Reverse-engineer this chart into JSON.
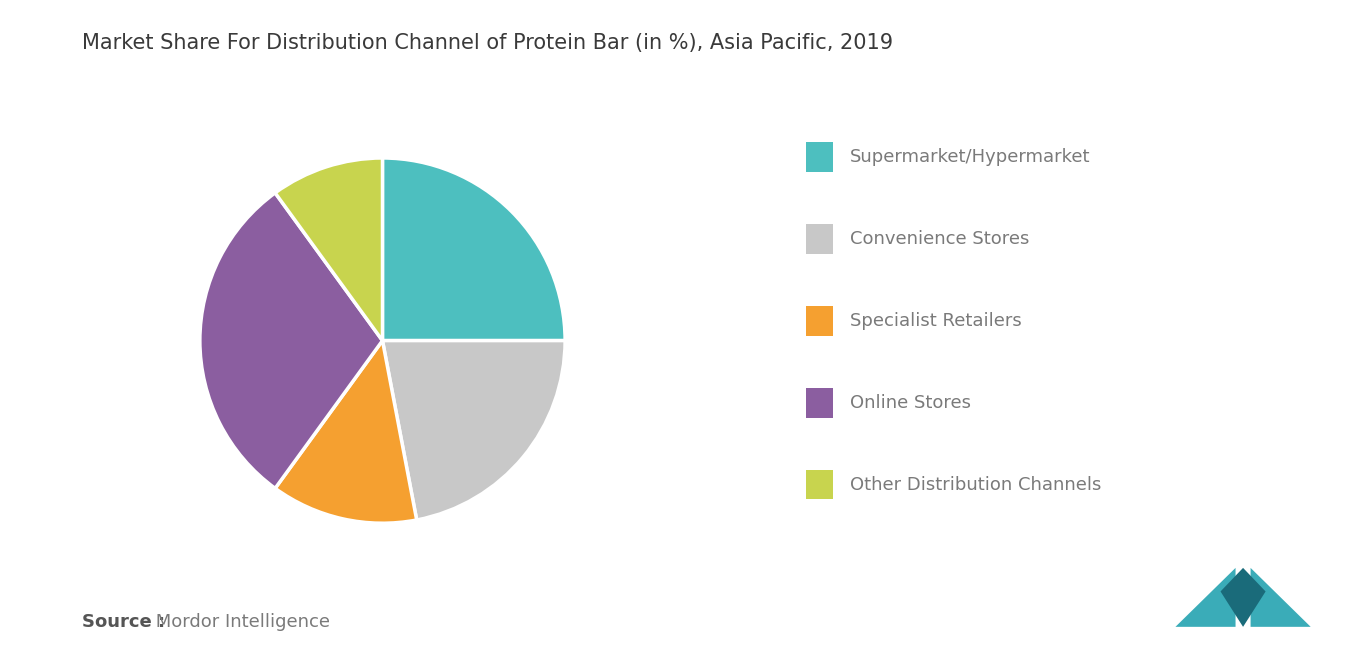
{
  "title": "Market Share For Distribution Channel of Protein Bar (in %), Asia Pacific, 2019",
  "slices": [
    {
      "label": "Supermarket/Hypermarket",
      "value": 25,
      "color": "#4DBFBF"
    },
    {
      "label": "Convenience Stores",
      "value": 22,
      "color": "#C8C8C8"
    },
    {
      "label": "Specialist Retailers",
      "value": 13,
      "color": "#F5A030"
    },
    {
      "label": "Online Stores",
      "value": 30,
      "color": "#8B5EA0"
    },
    {
      "label": "Other Distribution Channels",
      "value": 10,
      "color": "#C8D44E"
    }
  ],
  "legend_colors": [
    "#4DBFBF",
    "#C8C8C8",
    "#F5A030",
    "#8B5EA0",
    "#C8D44E"
  ],
  "legend_labels": [
    "Supermarket/Hypermarket",
    "Convenience Stores",
    "Specialist Retailers",
    "Online Stores",
    "Other Distribution Channels"
  ],
  "source_bold": "Source :",
  "source_normal": " Mordor Intelligence",
  "background_color": "#FFFFFF",
  "title_fontsize": 15,
  "legend_fontsize": 13,
  "source_fontsize": 13,
  "startangle": 90
}
